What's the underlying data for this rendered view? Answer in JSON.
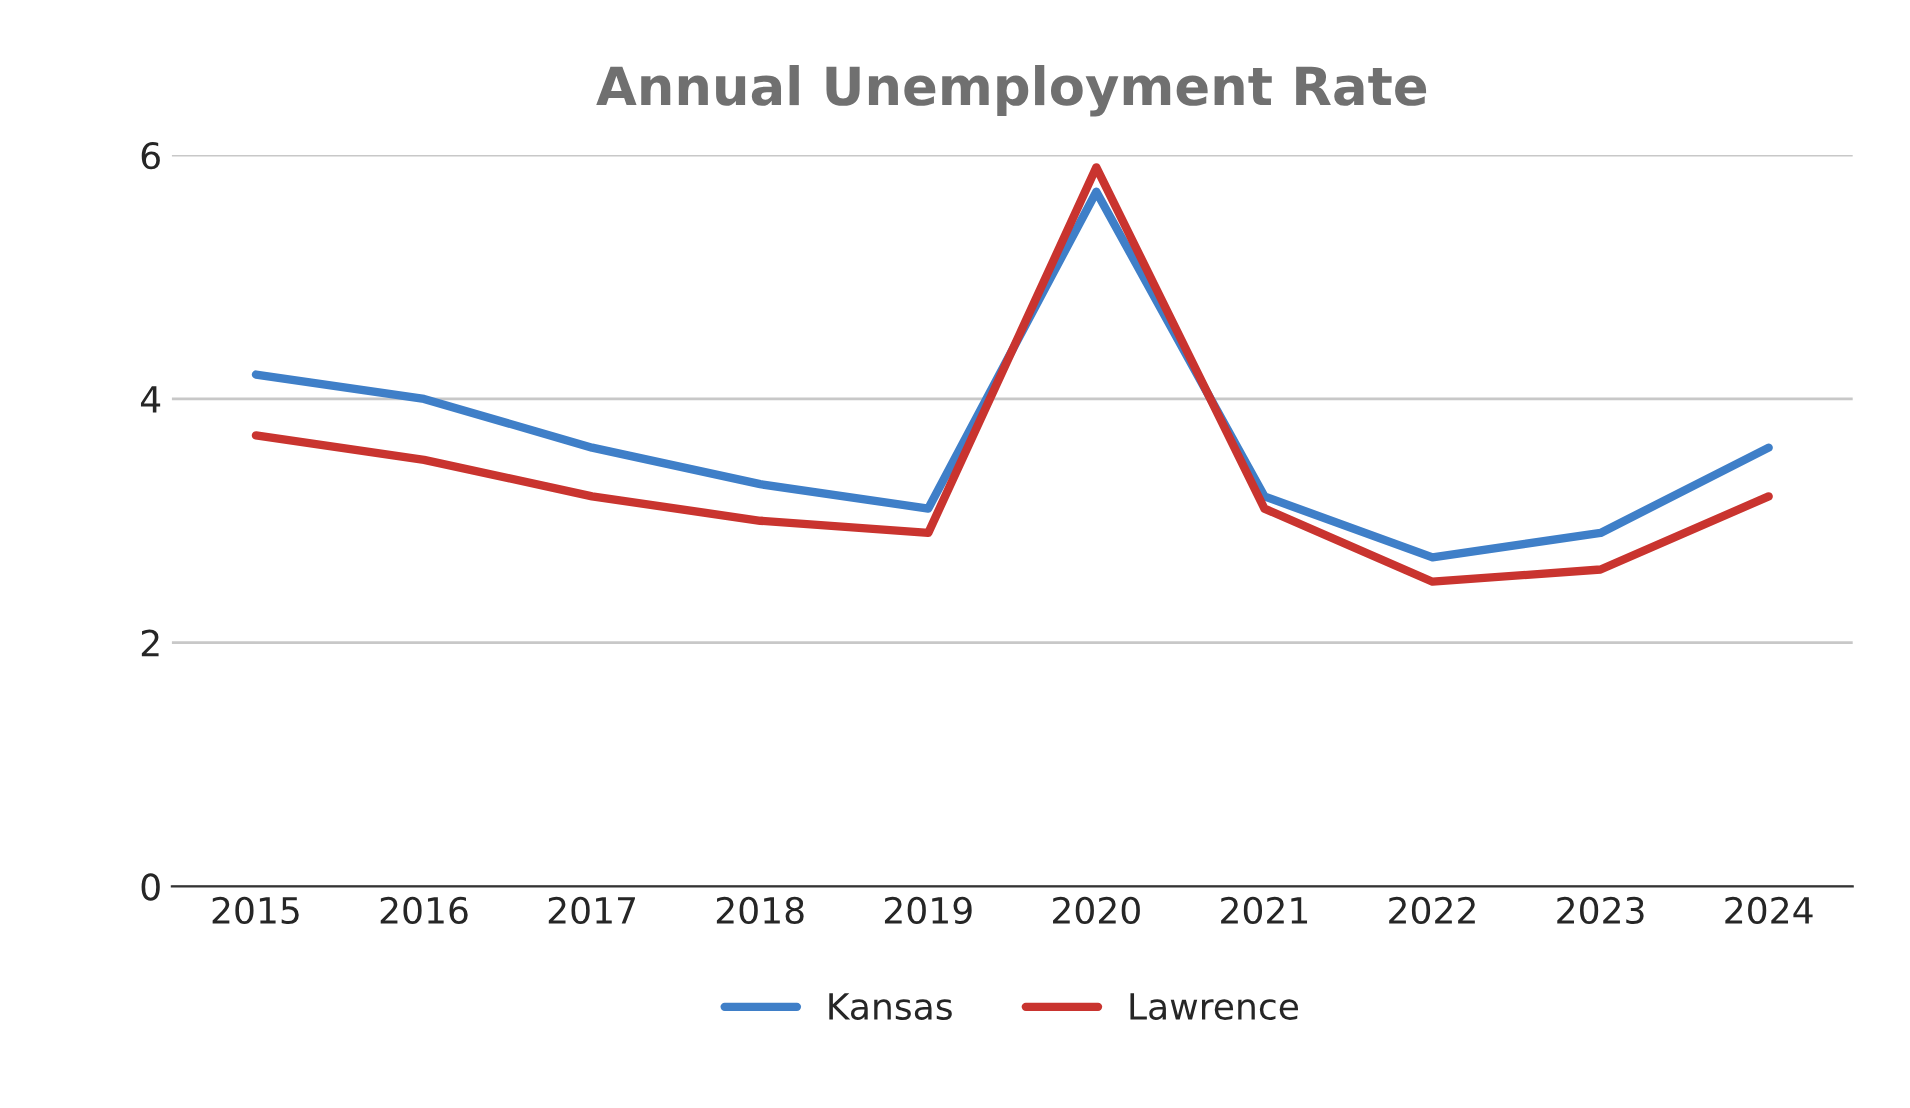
{
  "chart_data": {
    "type": "line",
    "title": "Annual Unemployment Rate",
    "categories": [
      "2015",
      "2016",
      "2017",
      "2018",
      "2019",
      "2020",
      "2021",
      "2022",
      "2023",
      "2024"
    ],
    "series": [
      {
        "name": "Kansas",
        "color": "#3f7fc8",
        "values": [
          4.2,
          4.0,
          3.6,
          3.3,
          3.1,
          5.7,
          3.2,
          2.7,
          2.9,
          3.6
        ]
      },
      {
        "name": "Lawrence",
        "color": "#c9342f",
        "values": [
          3.7,
          3.5,
          3.2,
          3.0,
          2.9,
          5.9,
          3.1,
          2.5,
          2.6,
          3.2
        ]
      }
    ],
    "ylim": [
      0,
      6
    ],
    "yticks": [
      0,
      2,
      4,
      6
    ],
    "grid": "y",
    "legend": "bottom",
    "marker": "none",
    "line_style": "solid"
  }
}
